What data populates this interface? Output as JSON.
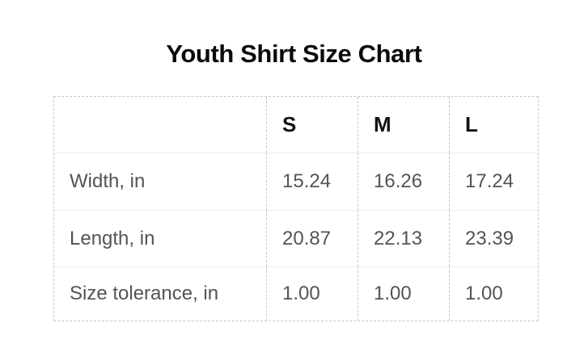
{
  "page_title": "Youth Shirt Size Chart",
  "chart_data": {
    "type": "table",
    "title": "Youth Shirt Size Chart",
    "columns": [
      "",
      "S",
      "M",
      "L"
    ],
    "rows": [
      {
        "label": "Width, in",
        "values": [
          "15.24",
          "16.26",
          "17.24"
        ]
      },
      {
        "label": "Length, in",
        "values": [
          "20.87",
          "22.13",
          "23.39"
        ]
      },
      {
        "label": "Size tolerance, in",
        "values": [
          "1.00",
          "1.00",
          "1.00"
        ]
      }
    ],
    "layout_hints": {
      "legend": "none",
      "grid": "dashed outer border and dashed column separators; light solid row separators",
      "header_style": "bold black",
      "body_style": "gray regular"
    }
  },
  "colors": {
    "background": "#ffffff",
    "title_text": "#0a0a0a",
    "header_text": "#131313",
    "body_text": "#545456",
    "dashed_border": "#c7c7c7",
    "row_separator": "#ececec"
  }
}
